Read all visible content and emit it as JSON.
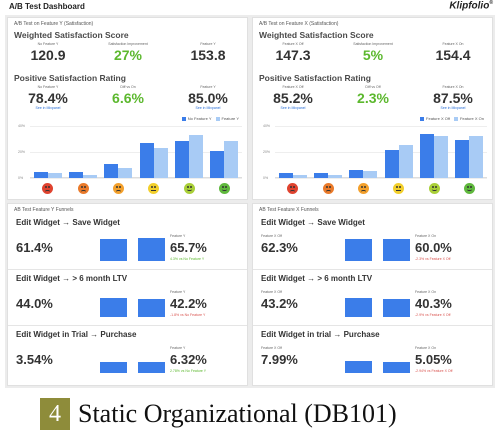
{
  "dashboard_title": "A/B Test Dashboard",
  "brand": "Klipfolio",
  "brand_mark": "®",
  "colors": {
    "bar_dark": "#3b7de9",
    "bar_light": "#a8cbf5",
    "improvement_green": "#5cb82e",
    "decline_red": "#d9534f",
    "caption_badge": "#8e8c3a"
  },
  "satisfaction_panels": [
    {
      "panel_title": "A/B Test on Feature Y (Satisfaction)",
      "weighted_title": "Weighted Satisfaction Score",
      "weighted": [
        {
          "cap": "No Feature Y",
          "val": "120.9",
          "sub": ""
        },
        {
          "cap": "Satisfaction Improvement",
          "val": "27%",
          "sub": ""
        },
        {
          "cap": "Feature Y",
          "val": "153.8",
          "sub": ""
        }
      ],
      "positive_title": "Positive Satisfaction Rating",
      "positive": [
        {
          "cap": "No Feature Y",
          "val": "78.4%",
          "sub": "See in Mixpanel"
        },
        {
          "cap": "Diff vs On",
          "val": "6.6%",
          "sub": ""
        },
        {
          "cap": "Feature Y",
          "val": "85.0%",
          "sub": "See in Mixpanel"
        }
      ],
      "legend": [
        "No Feature Y",
        "Feature Y"
      ],
      "y_ticks": [
        "40%",
        "20%",
        "0%"
      ]
    },
    {
      "panel_title": "A/B Test on Feature X (Satisfaction)",
      "weighted_title": "Weighted Satisfaction Score",
      "weighted": [
        {
          "cap": "Feature X Off",
          "val": "147.3",
          "sub": ""
        },
        {
          "cap": "Satisfaction Improvement",
          "val": "5%",
          "sub": ""
        },
        {
          "cap": "Feature X On",
          "val": "154.4",
          "sub": ""
        }
      ],
      "positive_title": "Positive Satisfaction Rating",
      "positive": [
        {
          "cap": "Feature X Off",
          "val": "85.2%",
          "sub": "See in Mixpanel"
        },
        {
          "cap": "Diff vs Off",
          "val": "2.3%",
          "sub": ""
        },
        {
          "cap": "Feature X On",
          "val": "87.5%",
          "sub": "See in Mixpanel"
        }
      ],
      "legend": [
        "Feature X Off",
        "Feature X On"
      ],
      "y_ticks": [
        "40%",
        "20%",
        "0%"
      ]
    }
  ],
  "face_icons": [
    "very-unsatisfied-face-icon",
    "unsatisfied-face-icon",
    "somewhat-unsatisfied-face-icon",
    "neutral-face-icon",
    "satisfied-face-icon",
    "very-satisfied-face-icon"
  ],
  "face_colors": [
    "#e0432f",
    "#ea7a2a",
    "#f3a02c",
    "#f2cf2c",
    "#a9cf38",
    "#5fb83d"
  ],
  "chart_data": [
    {
      "type": "bar",
      "categories": [
        "very-unsatisfied",
        "unsatisfied",
        "somewhat-unsatisfied",
        "neutral",
        "satisfied",
        "very-satisfied"
      ],
      "series": [
        {
          "name": "No Feature Y",
          "values": [
            5,
            5,
            12,
            30,
            32,
            23
          ]
        },
        {
          "name": "Feature Y",
          "values": [
            4,
            3,
            9,
            26,
            37,
            32
          ]
        }
      ],
      "ylim": [
        0,
        45
      ],
      "grid": true,
      "legend": "top-right"
    },
    {
      "type": "bar",
      "categories": [
        "very-unsatisfied",
        "unsatisfied",
        "somewhat-unsatisfied",
        "neutral",
        "satisfied",
        "very-satisfied"
      ],
      "series": [
        {
          "name": "Feature X Off",
          "values": [
            4,
            4,
            7,
            24,
            38,
            33
          ]
        },
        {
          "name": "Feature X On",
          "values": [
            3,
            3,
            6,
            29,
            36,
            36
          ]
        }
      ],
      "ylim": [
        0,
        45
      ],
      "grid": true,
      "legend": "top-right"
    }
  ],
  "funnel_panels": [
    {
      "panel_title": "AB Test Feature Y Funnels",
      "sections": [
        {
          "title": "Edit Widget → Save Widget",
          "left": "61.4%",
          "left_ratio": 0.614,
          "right_cap": "Feature Y",
          "right": "65.7%",
          "right_ratio": 0.657,
          "right_sub": "4.3% vs No Feature Y",
          "sub_color": "green"
        },
        {
          "title": "Edit Widget → > 6 month LTV",
          "left": "44.0%",
          "left_ratio": 0.44,
          "right_cap": "Feature Y",
          "right": "42.2%",
          "right_ratio": 0.422,
          "right_sub": "-1.8% vs No Feature Y",
          "sub_color": "red"
        },
        {
          "title": "Edit Widget in Trial → Purchase",
          "left": "3.54%",
          "left_ratio": 0.0354,
          "right_cap": "Feature Y",
          "right": "6.32%",
          "right_ratio": 0.0632,
          "right_sub": "2.78% vs No Feature Y",
          "sub_color": "green"
        }
      ]
    },
    {
      "panel_title": "AB Test Feature X Funnels",
      "sections": [
        {
          "title": "Edit Widget → Save Widget",
          "left_cap": "Feature X Off",
          "left": "62.3%",
          "left_ratio": 0.623,
          "right_cap": "Feature X On",
          "right": "60.0%",
          "right_ratio": 0.6,
          "right_sub": "-2.3% vs Feature X Off",
          "sub_color": "red"
        },
        {
          "title": "Edit Widget → > 6 month LTV",
          "left_cap": "Feature X Off",
          "left": "43.2%",
          "left_ratio": 0.432,
          "right_cap": "Feature X On",
          "right": "40.3%",
          "right_ratio": 0.403,
          "right_sub": "-2.9% vs Feature X Off",
          "sub_color": "red"
        },
        {
          "title": "Edit Widget in trial → Purchase",
          "left_cap": "Feature X Off",
          "left": "7.99%",
          "left_ratio": 0.0799,
          "right_cap": "Feature X On",
          "right": "5.05%",
          "right_ratio": 0.0505,
          "right_sub": "-2.94% vs Feature X Off",
          "sub_color": "red"
        }
      ]
    }
  ],
  "caption": {
    "number": "4",
    "text": "Static Organizational (DB101)"
  }
}
